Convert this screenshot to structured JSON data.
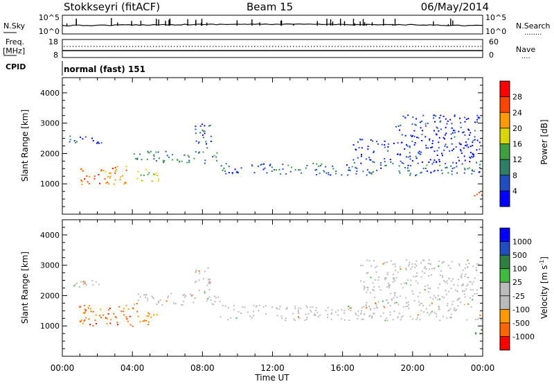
{
  "header": {
    "station": "Stokkseyri (fitACF)",
    "beam": "Beam 15",
    "date": "06/May/2014"
  },
  "strip_labels": {
    "nsky": "N.Sky",
    "nsearch": "N.Search",
    "freq": "Freq.",
    "freq_unit": "[MHz]",
    "nave": "Nave",
    "cpid": "CPID",
    "cpid_value": "normal (fast) 151",
    "nsky_ticks": [
      "10^5",
      "10^0"
    ],
    "nsearch_ticks": [
      "10^5",
      "10^0"
    ],
    "freq_ticks": [
      "18",
      "8"
    ],
    "nave_ticks": [
      "60",
      "0"
    ],
    "dots": "........",
    "nave_dots": "...."
  },
  "colors": {
    "power": [
      "#0000ff",
      "#204dbf",
      "#2f7f66",
      "#40a040",
      "#d8d800",
      "#ff9900",
      "#ff4400",
      "#ff0000"
    ],
    "velocity": [
      "#ff0000",
      "#ff6600",
      "#ff9900",
      "#bbbbbb",
      "#bbbbbb",
      "#40bb40",
      "#2f8040",
      "#204dbf",
      "#0000ff"
    ]
  },
  "chart_data": [
    {
      "type": "heatmap",
      "title": "",
      "xlabel": "",
      "ylabel": "Slant Range [km]",
      "xlim": [
        0,
        24
      ],
      "ylim": [
        0,
        4500
      ],
      "x_ticks": [
        "00:00",
        "04:00",
        "08:00",
        "12:00",
        "16:00",
        "20:00",
        "00:00"
      ],
      "y_ticks": [
        "1000",
        "2000",
        "3000",
        "4000"
      ],
      "colorbar": {
        "label": "Power [dB]",
        "ticks": [
          "4",
          "8",
          "12",
          "16",
          "20",
          "24",
          "28"
        ],
        "range": [
          0,
          32
        ]
      },
      "echo_regions": [
        {
          "t_start": 0.3,
          "t_end": 2.3,
          "range_start": 2300,
          "range_end": 2600,
          "power": 6
        },
        {
          "t_start": 0.9,
          "t_end": 3.8,
          "range_start": 1000,
          "range_end": 1600,
          "power": 24
        },
        {
          "t_start": 4.2,
          "t_end": 5.5,
          "range_start": 1000,
          "range_end": 1500,
          "power": 18
        },
        {
          "t_start": 4.0,
          "t_end": 9.0,
          "range_start": 1700,
          "range_end": 2100,
          "power": 10
        },
        {
          "t_start": 7.5,
          "t_end": 8.5,
          "range_start": 2100,
          "range_end": 3000,
          "power": 6
        },
        {
          "t_start": 9.0,
          "t_end": 24.0,
          "range_start": 1300,
          "range_end": 1700,
          "power": 8
        },
        {
          "t_start": 16.5,
          "t_end": 23.8,
          "range_start": 1700,
          "range_end": 2500,
          "power": 4
        },
        {
          "t_start": 19.0,
          "t_end": 23.8,
          "range_start": 2500,
          "range_end": 3300,
          "power": 4
        },
        {
          "t_start": 23.5,
          "t_end": 24.0,
          "range_start": 600,
          "range_end": 950,
          "power": 26
        }
      ]
    },
    {
      "type": "heatmap",
      "title": "",
      "xlabel": "Time UT",
      "ylabel": "Slant Range [km]",
      "xlim": [
        0,
        24
      ],
      "ylim": [
        0,
        4500
      ],
      "x_ticks": [
        "00:00",
        "04:00",
        "08:00",
        "12:00",
        "16:00",
        "20:00",
        "00:00"
      ],
      "y_ticks": [
        "1000",
        "2000",
        "3000",
        "4000"
      ],
      "colorbar": {
        "label": "Velocity [m s^-1]",
        "ticks": [
          "1000",
          "500",
          "100",
          "25",
          "-25",
          "-100",
          "-500",
          "-1000"
        ],
        "range": [
          -1000,
          1000
        ]
      },
      "echo_regions": [
        {
          "t_start": 0.3,
          "t_end": 2.3,
          "range_start": 2300,
          "range_end": 2600,
          "velocity": 0
        },
        {
          "t_start": 0.9,
          "t_end": 4.5,
          "range_start": 1000,
          "range_end": 1700,
          "velocity": -300
        },
        {
          "t_start": 4.5,
          "t_end": 5.5,
          "range_start": 1000,
          "range_end": 1500,
          "velocity": -200
        },
        {
          "t_start": 4.0,
          "t_end": 9.0,
          "range_start": 1700,
          "range_end": 2100,
          "velocity": 0
        },
        {
          "t_start": 7.5,
          "t_end": 8.5,
          "range_start": 2100,
          "range_end": 3000,
          "velocity": 0
        },
        {
          "t_start": 9.0,
          "t_end": 24.0,
          "range_start": 1200,
          "range_end": 1700,
          "velocity": 0
        },
        {
          "t_start": 17.0,
          "t_end": 23.8,
          "range_start": 1700,
          "range_end": 3200,
          "velocity": 0
        },
        {
          "t_start": 23.5,
          "t_end": 24.0,
          "range_start": 600,
          "range_end": 900,
          "velocity": 200
        }
      ]
    }
  ]
}
